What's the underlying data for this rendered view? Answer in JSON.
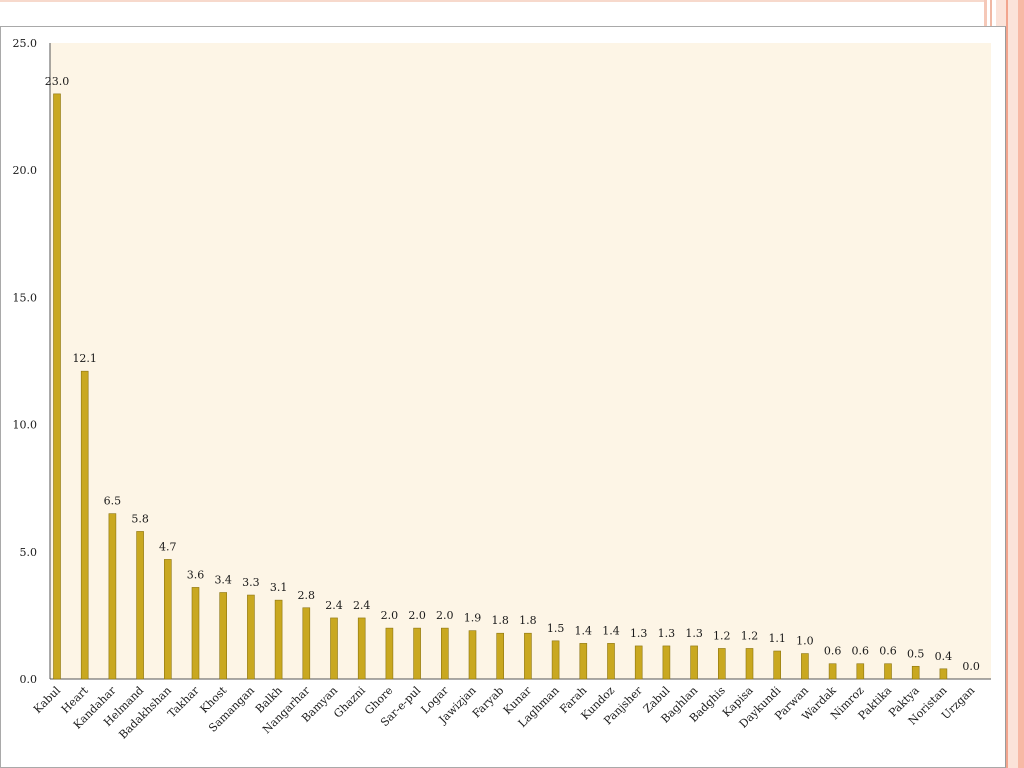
{
  "colors": {
    "bar": "#c9a820",
    "bar_edge": "#8c7410",
    "plot_bg": "#fdf5e6",
    "axis": "#555555"
  },
  "chart_data": {
    "type": "bar",
    "title": "",
    "xlabel": "",
    "ylabel": "",
    "ylim": [
      0,
      25
    ],
    "yticks": [
      0,
      5,
      10,
      15,
      20,
      25
    ],
    "ytick_labels": [
      "0.0",
      "5.0",
      "10.0",
      "15.0",
      "20.0",
      "25.0"
    ],
    "grid": false,
    "categories": [
      "Kabul",
      "Heart",
      "Kandahar",
      "Helmand",
      "Badakhshan",
      "Takhar",
      "Khost",
      "Samangan",
      "Balkh",
      "Nangarhar",
      "Bamyan",
      "Ghazni",
      "Ghore",
      "Sar-e-pul",
      "Logar",
      "Jawizjan",
      "Faryab",
      "Kunar",
      "Laghman",
      "Farah",
      "Kundoz",
      "Panjsher",
      "Zabul",
      "Baghlan",
      "Badghis",
      "Kapisa",
      "Daykundi",
      "Parwan",
      "Wardak",
      "Nimroz",
      "Paktika",
      "Paktya",
      "Noristan",
      "Urzgan"
    ],
    "values": [
      23.0,
      12.1,
      6.5,
      5.8,
      4.7,
      3.6,
      3.4,
      3.3,
      3.1,
      2.8,
      2.4,
      2.4,
      2.0,
      2.0,
      2.0,
      1.9,
      1.8,
      1.8,
      1.5,
      1.4,
      1.4,
      1.3,
      1.3,
      1.3,
      1.2,
      1.2,
      1.1,
      1.0,
      0.6,
      0.6,
      0.6,
      0.5,
      0.4,
      0.0
    ],
    "value_labels": [
      "23.0",
      "12.1",
      "6.5",
      "5.8",
      "4.7",
      "3.6",
      "3.4",
      "3.3",
      "3.1",
      "2.8",
      "2.4",
      "2.4",
      "2.0",
      "2.0",
      "2.0",
      "1.9",
      "1.8",
      "1.8",
      "1.5",
      "1.4",
      "1.4",
      "1.3",
      "1.3",
      "1.3",
      "1.2",
      "1.2",
      "1.1",
      "1.0",
      "0.6",
      "0.6",
      "0.6",
      "0.5",
      "0.4",
      "0.0"
    ]
  }
}
